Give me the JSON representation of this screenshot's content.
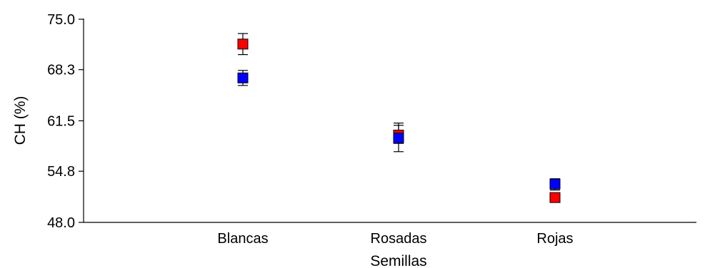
{
  "chart_data": {
    "type": "scatter",
    "title": "",
    "xlabel": "Semillas",
    "ylabel": "CH (%)",
    "categories": [
      "Blancas",
      "Rosadas",
      "Rojas"
    ],
    "ylim": [
      48.0,
      75.0
    ],
    "yticks": [
      "48.0",
      "54.8",
      "61.5",
      "68.3",
      "75.0"
    ],
    "grid": false,
    "legend": "none",
    "marker": "square",
    "series": [
      {
        "color": "#ff0000",
        "values": [
          71.7,
          59.6,
          51.3
        ],
        "err_low": [
          70.3,
          58.5,
          50.8
        ],
        "err_high": [
          73.1,
          61.2,
          51.8
        ]
      },
      {
        "color": "#0000ff",
        "values": [
          67.2,
          59.2,
          53.1
        ],
        "err_low": [
          66.2,
          57.4,
          52.3
        ],
        "err_high": [
          68.2,
          60.9,
          53.8
        ]
      }
    ]
  }
}
